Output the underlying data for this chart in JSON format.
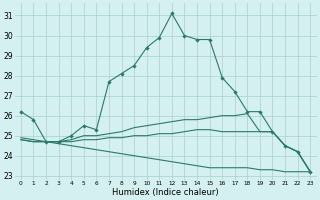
{
  "xlabel": "Humidex (Indice chaleur)",
  "background_color": "#d4f0f0",
  "grid_color": "#a8d0cc",
  "line_color": "#2a7a6a",
  "x_ticks": [
    0,
    1,
    2,
    3,
    4,
    5,
    6,
    7,
    8,
    9,
    10,
    11,
    12,
    13,
    14,
    15,
    16,
    17,
    18,
    19,
    20,
    21,
    22,
    23
  ],
  "ylim": [
    22.8,
    31.6
  ],
  "xlim": [
    -0.5,
    23.5
  ],
  "yticks": [
    23,
    24,
    25,
    26,
    27,
    28,
    29,
    30,
    31
  ],
  "lines": [
    {
      "x": [
        0,
        1,
        2,
        3,
        4,
        5,
        6,
        7,
        8,
        9,
        10,
        11,
        12,
        13,
        14,
        15,
        16,
        17,
        18,
        19,
        20,
        21,
        22,
        23
      ],
      "y": [
        26.2,
        25.8,
        24.7,
        24.7,
        25.0,
        25.5,
        25.3,
        27.7,
        28.1,
        28.5,
        29.4,
        29.9,
        31.1,
        30.0,
        29.8,
        29.8,
        27.9,
        27.2,
        26.2,
        26.2,
        25.2,
        24.5,
        24.2,
        23.2
      ],
      "marker": true
    },
    {
      "x": [
        0,
        1,
        2,
        3,
        4,
        5,
        6,
        7,
        8,
        9,
        10,
        11,
        12,
        13,
        14,
        15,
        16,
        17,
        18,
        19,
        20,
        21,
        22,
        23
      ],
      "y": [
        24.9,
        24.8,
        24.7,
        24.7,
        24.8,
        25.0,
        25.0,
        25.1,
        25.2,
        25.4,
        25.5,
        25.6,
        25.7,
        25.8,
        25.8,
        25.9,
        26.0,
        26.0,
        26.1,
        25.2,
        25.2,
        24.5,
        24.2,
        23.2
      ],
      "marker": false
    },
    {
      "x": [
        0,
        1,
        2,
        3,
        4,
        5,
        6,
        7,
        8,
        9,
        10,
        11,
        12,
        13,
        14,
        15,
        16,
        17,
        18,
        19,
        20,
        21,
        22,
        23
      ],
      "y": [
        24.8,
        24.7,
        24.7,
        24.7,
        24.7,
        24.8,
        24.8,
        24.9,
        24.9,
        25.0,
        25.0,
        25.1,
        25.1,
        25.2,
        25.3,
        25.3,
        25.2,
        25.2,
        25.2,
        25.2,
        25.2,
        24.5,
        24.2,
        23.2
      ],
      "marker": false
    },
    {
      "x": [
        0,
        1,
        2,
        3,
        4,
        5,
        6,
        7,
        8,
        9,
        10,
        11,
        12,
        13,
        14,
        15,
        16,
        17,
        18,
        19,
        20,
        21,
        22,
        23
      ],
      "y": [
        24.8,
        24.7,
        24.7,
        24.6,
        24.5,
        24.4,
        24.3,
        24.2,
        24.1,
        24.0,
        23.9,
        23.8,
        23.7,
        23.6,
        23.5,
        23.4,
        23.4,
        23.4,
        23.4,
        23.3,
        23.3,
        23.2,
        23.2,
        23.2
      ],
      "marker": false
    }
  ],
  "figsize": [
    3.2,
    2.0
  ],
  "dpi": 100,
  "xlabel_fontsize": 6,
  "ytick_fontsize": 5.5,
  "xtick_fontsize": 4.2,
  "linewidth": 0.8,
  "markersize": 2.2
}
